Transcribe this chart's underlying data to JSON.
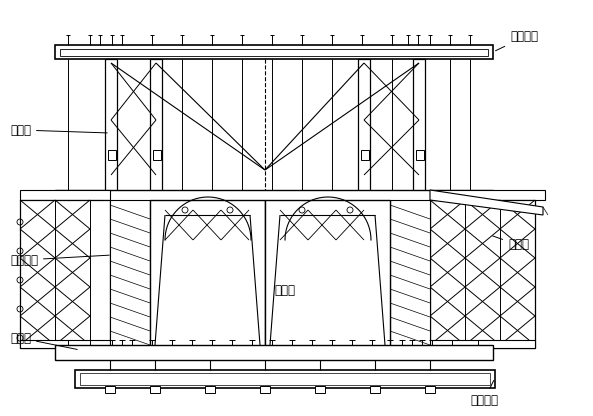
{
  "bg_color": "#ffffff",
  "line_color": "#000000",
  "labels": {
    "front_upper_beam": "前上横梁",
    "diamond_frame": "菱形架",
    "outer_mold": "外模系统",
    "bottom_beam": "底纵梁",
    "inner_guide": "内导梁",
    "outer_guide": "外导梁",
    "front_lower_beam": "前下横梁"
  },
  "figsize": [
    5.93,
    4.16
  ],
  "dpi": 100
}
